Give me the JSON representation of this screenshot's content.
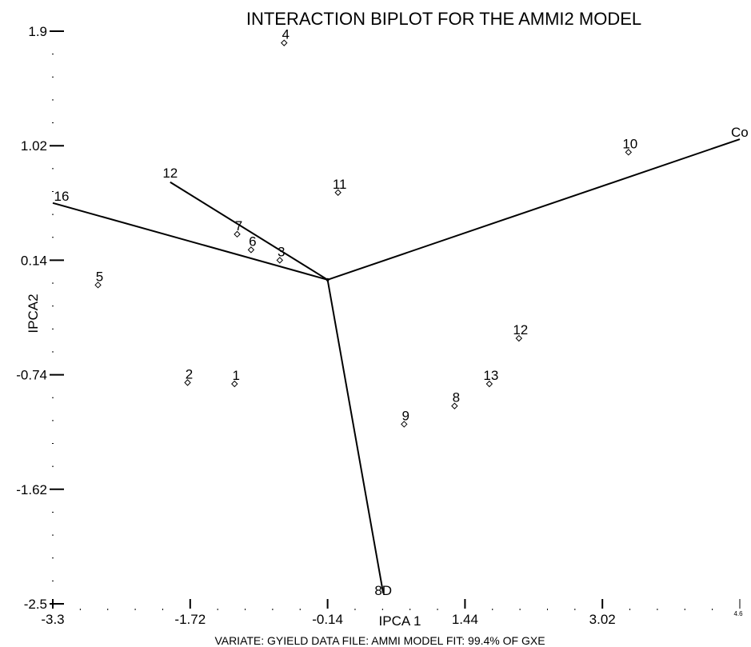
{
  "chart_data": {
    "type": "scatter",
    "title": "INTERACTION BIPLOT FOR THE AMMI2 MODEL",
    "xlabel": "IPCA 1",
    "ylabel": "IPCA2",
    "footer": "VARIATE: GYIELD  DATA FILE: AMMI     MODEL FIT: 99.4% OF GXE",
    "xlim": [
      -3.3,
      4.6
    ],
    "ylim": [
      -2.5,
      1.9
    ],
    "x_ticks": [
      "-3.3",
      "-1.72",
      "-0.14",
      "1.44",
      "3.02",
      "4.6"
    ],
    "y_ticks": [
      "1.9",
      "1.02",
      "0.14",
      "-0.74",
      "-1.62",
      "-2.5"
    ],
    "origin": [
      -0.14,
      -0.01
    ],
    "genotypes": [
      {
        "label": "1",
        "x": -1.21,
        "y": -0.81
      },
      {
        "label": "2",
        "x": -1.75,
        "y": -0.8
      },
      {
        "label": "3",
        "x": -0.69,
        "y": 0.14
      },
      {
        "label": "4",
        "x": -0.64,
        "y": 1.81
      },
      {
        "label": "5",
        "x": -2.78,
        "y": -0.05
      },
      {
        "label": "6",
        "x": -1.02,
        "y": 0.22
      },
      {
        "label": "7",
        "x": -1.18,
        "y": 0.34
      },
      {
        "label": "8",
        "x": 1.32,
        "y": -0.98
      },
      {
        "label": "9",
        "x": 0.74,
        "y": -1.12
      },
      {
        "label": "10",
        "x": 3.32,
        "y": 0.97
      },
      {
        "label": "11",
        "x": -0.02,
        "y": 0.66
      },
      {
        "label": "12",
        "x": 2.06,
        "y": -0.46
      },
      {
        "label": "13",
        "x": 1.72,
        "y": -0.81
      }
    ],
    "environments": [
      {
        "label": "Co",
        "x": 4.6,
        "y": 1.07
      },
      {
        "label": "12",
        "x": -1.95,
        "y": 0.74
      },
      {
        "label": "16",
        "x": -3.3,
        "y": 0.58
      },
      {
        "label": "8D",
        "x": 0.5,
        "y": -2.42
      }
    ]
  }
}
